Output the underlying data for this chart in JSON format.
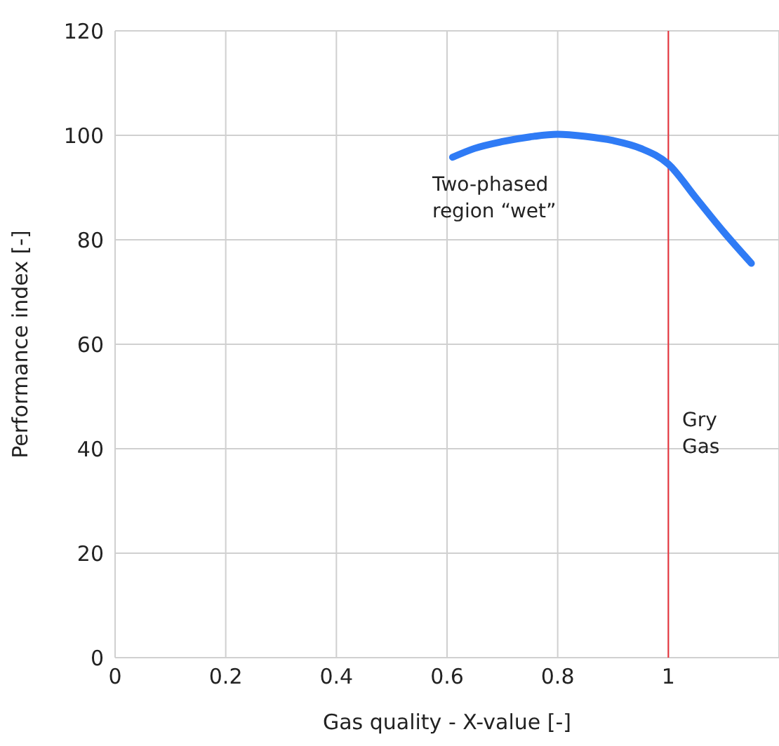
{
  "chart_data": {
    "type": "line",
    "xlabel": "Gas quality - X-value [-]",
    "ylabel": "Performance index [-]",
    "x": [
      0.61,
      0.65,
      0.7,
      0.75,
      0.8,
      0.85,
      0.9,
      0.95,
      1.0,
      1.05,
      1.1,
      1.15
    ],
    "series": [
      {
        "color": "#2f7bf5",
        "values": [
          95.8,
          97.5,
          98.8,
          99.7,
          100.2,
          99.8,
          99,
          97.5,
          94.5,
          88,
          81.5,
          75.5
        ]
      }
    ],
    "xlim": [
      0,
      1.2
    ],
    "xticks": [
      0,
      0.2,
      0.4,
      0.6,
      0.8,
      1
    ],
    "ylim": [
      0,
      120
    ],
    "yticks": [
      0,
      20,
      40,
      60,
      80,
      100,
      120
    ],
    "grid": true,
    "marker": "none",
    "line_style": "solid",
    "ref_lines": [
      {
        "axis": "x",
        "value": 1,
        "color": "#e8303a"
      }
    ],
    "annotations": [
      "Two-phased\nregion “wet”",
      "Gry\nGas"
    ]
  }
}
